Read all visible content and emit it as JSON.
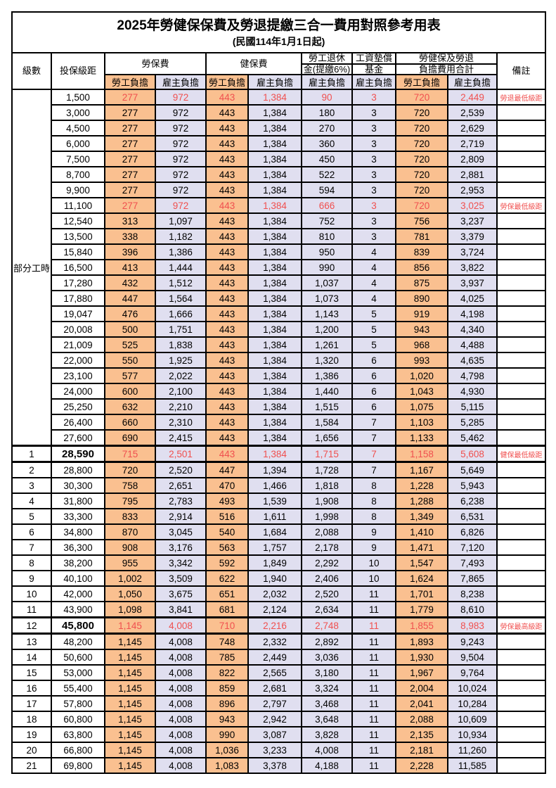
{
  "page": {
    "title": "2025年勞健保保費及勞退提繳三合一費用對照參考用表",
    "subtitle": "(民國114年1月1日起)"
  },
  "colors": {
    "employee_bg": "#FAC090",
    "employer_bg": "#E0DFF0",
    "highlight_red": "#F0504F"
  },
  "table": {
    "header": {
      "level": "級數",
      "salary_bracket": "投保級距",
      "labor_insurance": "勞保費",
      "health_insurance": "健保費",
      "pension_line1": "勞工退休",
      "pension_line2": "金(提繳6%)",
      "wage_fund_line1": "工資墊償",
      "wage_fund_line2": "基金",
      "total_line1": "勞健保及勞退",
      "total_line2": "負擔費用合計",
      "remark": "備註",
      "employee_share": "勞工負擔",
      "employer_share": "雇主負擔"
    },
    "part_time_label": "部分工時",
    "part_time_rowspan": 23,
    "rows": [
      {
        "sal": "1,500",
        "v": [
          "277",
          "972",
          "443",
          "1,384",
          "90",
          "3",
          "720",
          "2,449"
        ],
        "note": "勞退最低級距",
        "red": true
      },
      {
        "sal": "3,000",
        "v": [
          "277",
          "972",
          "443",
          "1,384",
          "180",
          "3",
          "720",
          "2,539"
        ]
      },
      {
        "sal": "4,500",
        "v": [
          "277",
          "972",
          "443",
          "1,384",
          "270",
          "3",
          "720",
          "2,629"
        ]
      },
      {
        "sal": "6,000",
        "v": [
          "277",
          "972",
          "443",
          "1,384",
          "360",
          "3",
          "720",
          "2,719"
        ]
      },
      {
        "sal": "7,500",
        "v": [
          "277",
          "972",
          "443",
          "1,384",
          "450",
          "3",
          "720",
          "2,809"
        ]
      },
      {
        "sal": "8,700",
        "v": [
          "277",
          "972",
          "443",
          "1,384",
          "522",
          "3",
          "720",
          "2,881"
        ]
      },
      {
        "sal": "9,900",
        "v": [
          "277",
          "972",
          "443",
          "1,384",
          "594",
          "3",
          "720",
          "2,953"
        ]
      },
      {
        "sal": "11,100",
        "v": [
          "277",
          "972",
          "443",
          "1,384",
          "666",
          "3",
          "720",
          "3,025"
        ],
        "note": "勞保最低級距",
        "red": true
      },
      {
        "sal": "12,540",
        "v": [
          "313",
          "1,097",
          "443",
          "1,384",
          "752",
          "3",
          "756",
          "3,237"
        ]
      },
      {
        "sal": "13,500",
        "v": [
          "338",
          "1,182",
          "443",
          "1,384",
          "810",
          "3",
          "781",
          "3,379"
        ]
      },
      {
        "sal": "15,840",
        "v": [
          "396",
          "1,386",
          "443",
          "1,384",
          "950",
          "4",
          "839",
          "3,724"
        ]
      },
      {
        "sal": "16,500",
        "v": [
          "413",
          "1,444",
          "443",
          "1,384",
          "990",
          "4",
          "856",
          "3,822"
        ]
      },
      {
        "sal": "17,280",
        "v": [
          "432",
          "1,512",
          "443",
          "1,384",
          "1,037",
          "4",
          "875",
          "3,937"
        ]
      },
      {
        "sal": "17,880",
        "v": [
          "447",
          "1,564",
          "443",
          "1,384",
          "1,073",
          "4",
          "890",
          "4,025"
        ]
      },
      {
        "sal": "19,047",
        "v": [
          "476",
          "1,666",
          "443",
          "1,384",
          "1,143",
          "5",
          "919",
          "4,198"
        ]
      },
      {
        "sal": "20,008",
        "v": [
          "500",
          "1,751",
          "443",
          "1,384",
          "1,200",
          "5",
          "943",
          "4,340"
        ]
      },
      {
        "sal": "21,009",
        "v": [
          "525",
          "1,838",
          "443",
          "1,384",
          "1,261",
          "5",
          "968",
          "4,488"
        ]
      },
      {
        "sal": "22,000",
        "v": [
          "550",
          "1,925",
          "443",
          "1,384",
          "1,320",
          "6",
          "993",
          "4,635"
        ]
      },
      {
        "sal": "23,100",
        "v": [
          "577",
          "2,022",
          "443",
          "1,384",
          "1,386",
          "6",
          "1,020",
          "4,798"
        ]
      },
      {
        "sal": "24,000",
        "v": [
          "600",
          "2,100",
          "443",
          "1,384",
          "1,440",
          "6",
          "1,043",
          "4,930"
        ]
      },
      {
        "sal": "25,250",
        "v": [
          "632",
          "2,210",
          "443",
          "1,384",
          "1,515",
          "6",
          "1,075",
          "5,115"
        ]
      },
      {
        "sal": "26,400",
        "v": [
          "660",
          "2,310",
          "443",
          "1,384",
          "1,584",
          "7",
          "1,103",
          "5,285"
        ]
      },
      {
        "sal": "27,600",
        "v": [
          "690",
          "2,415",
          "443",
          "1,384",
          "1,656",
          "7",
          "1,133",
          "5,462"
        ]
      },
      {
        "lv": "1",
        "sal": "28,590",
        "v": [
          "715",
          "2,501",
          "443",
          "1,384",
          "1,715",
          "7",
          "1,158",
          "5,608"
        ],
        "note": "健保最低級距",
        "red": true,
        "bold": true,
        "heavy": true
      },
      {
        "lv": "2",
        "sal": "28,800",
        "v": [
          "720",
          "2,520",
          "447",
          "1,394",
          "1,728",
          "7",
          "1,167",
          "5,649"
        ]
      },
      {
        "lv": "3",
        "sal": "30,300",
        "v": [
          "758",
          "2,651",
          "470",
          "1,466",
          "1,818",
          "8",
          "1,228",
          "5,943"
        ]
      },
      {
        "lv": "4",
        "sal": "31,800",
        "v": [
          "795",
          "2,783",
          "493",
          "1,539",
          "1,908",
          "8",
          "1,288",
          "6,238"
        ]
      },
      {
        "lv": "5",
        "sal": "33,300",
        "v": [
          "833",
          "2,914",
          "516",
          "1,611",
          "1,998",
          "8",
          "1,349",
          "6,531"
        ]
      },
      {
        "lv": "6",
        "sal": "34,800",
        "v": [
          "870",
          "3,045",
          "540",
          "1,684",
          "2,088",
          "9",
          "1,410",
          "6,826"
        ]
      },
      {
        "lv": "7",
        "sal": "36,300",
        "v": [
          "908",
          "3,176",
          "563",
          "1,757",
          "2,178",
          "9",
          "1,471",
          "7,120"
        ]
      },
      {
        "lv": "8",
        "sal": "38,200",
        "v": [
          "955",
          "3,342",
          "592",
          "1,849",
          "2,292",
          "10",
          "1,547",
          "7,493"
        ]
      },
      {
        "lv": "9",
        "sal": "40,100",
        "v": [
          "1,002",
          "3,509",
          "622",
          "1,940",
          "2,406",
          "10",
          "1,624",
          "7,865"
        ]
      },
      {
        "lv": "10",
        "sal": "42,000",
        "v": [
          "1,050",
          "3,675",
          "651",
          "2,032",
          "2,520",
          "11",
          "1,701",
          "8,238"
        ]
      },
      {
        "lv": "11",
        "sal": "43,900",
        "v": [
          "1,098",
          "3,841",
          "681",
          "2,124",
          "2,634",
          "11",
          "1,779",
          "8,610"
        ]
      },
      {
        "lv": "12",
        "sal": "45,800",
        "v": [
          "1,145",
          "4,008",
          "710",
          "2,216",
          "2,748",
          "11",
          "1,855",
          "8,983"
        ],
        "note": "勞保最高級距",
        "red": true,
        "bold": true,
        "heavy": true
      },
      {
        "lv": "13",
        "sal": "48,200",
        "v": [
          "1,145",
          "4,008",
          "748",
          "2,332",
          "2,892",
          "11",
          "1,893",
          "9,243"
        ]
      },
      {
        "lv": "14",
        "sal": "50,600",
        "v": [
          "1,145",
          "4,008",
          "785",
          "2,449",
          "3,036",
          "11",
          "1,930",
          "9,504"
        ]
      },
      {
        "lv": "15",
        "sal": "53,000",
        "v": [
          "1,145",
          "4,008",
          "822",
          "2,565",
          "3,180",
          "11",
          "1,967",
          "9,764"
        ]
      },
      {
        "lv": "16",
        "sal": "55,400",
        "v": [
          "1,145",
          "4,008",
          "859",
          "2,681",
          "3,324",
          "11",
          "2,004",
          "10,024"
        ]
      },
      {
        "lv": "17",
        "sal": "57,800",
        "v": [
          "1,145",
          "4,008",
          "896",
          "2,797",
          "3,468",
          "11",
          "2,041",
          "10,284"
        ]
      },
      {
        "lv": "18",
        "sal": "60,800",
        "v": [
          "1,145",
          "4,008",
          "943",
          "2,942",
          "3,648",
          "11",
          "2,088",
          "10,609"
        ]
      },
      {
        "lv": "19",
        "sal": "63,800",
        "v": [
          "1,145",
          "4,008",
          "990",
          "3,087",
          "3,828",
          "11",
          "2,135",
          "10,934"
        ]
      },
      {
        "lv": "20",
        "sal": "66,800",
        "v": [
          "1,145",
          "4,008",
          "1,036",
          "3,233",
          "4,008",
          "11",
          "2,181",
          "11,260"
        ]
      },
      {
        "lv": "21",
        "sal": "69,800",
        "v": [
          "1,145",
          "4,008",
          "1,083",
          "3,378",
          "4,188",
          "11",
          "2,228",
          "11,585"
        ]
      }
    ]
  }
}
